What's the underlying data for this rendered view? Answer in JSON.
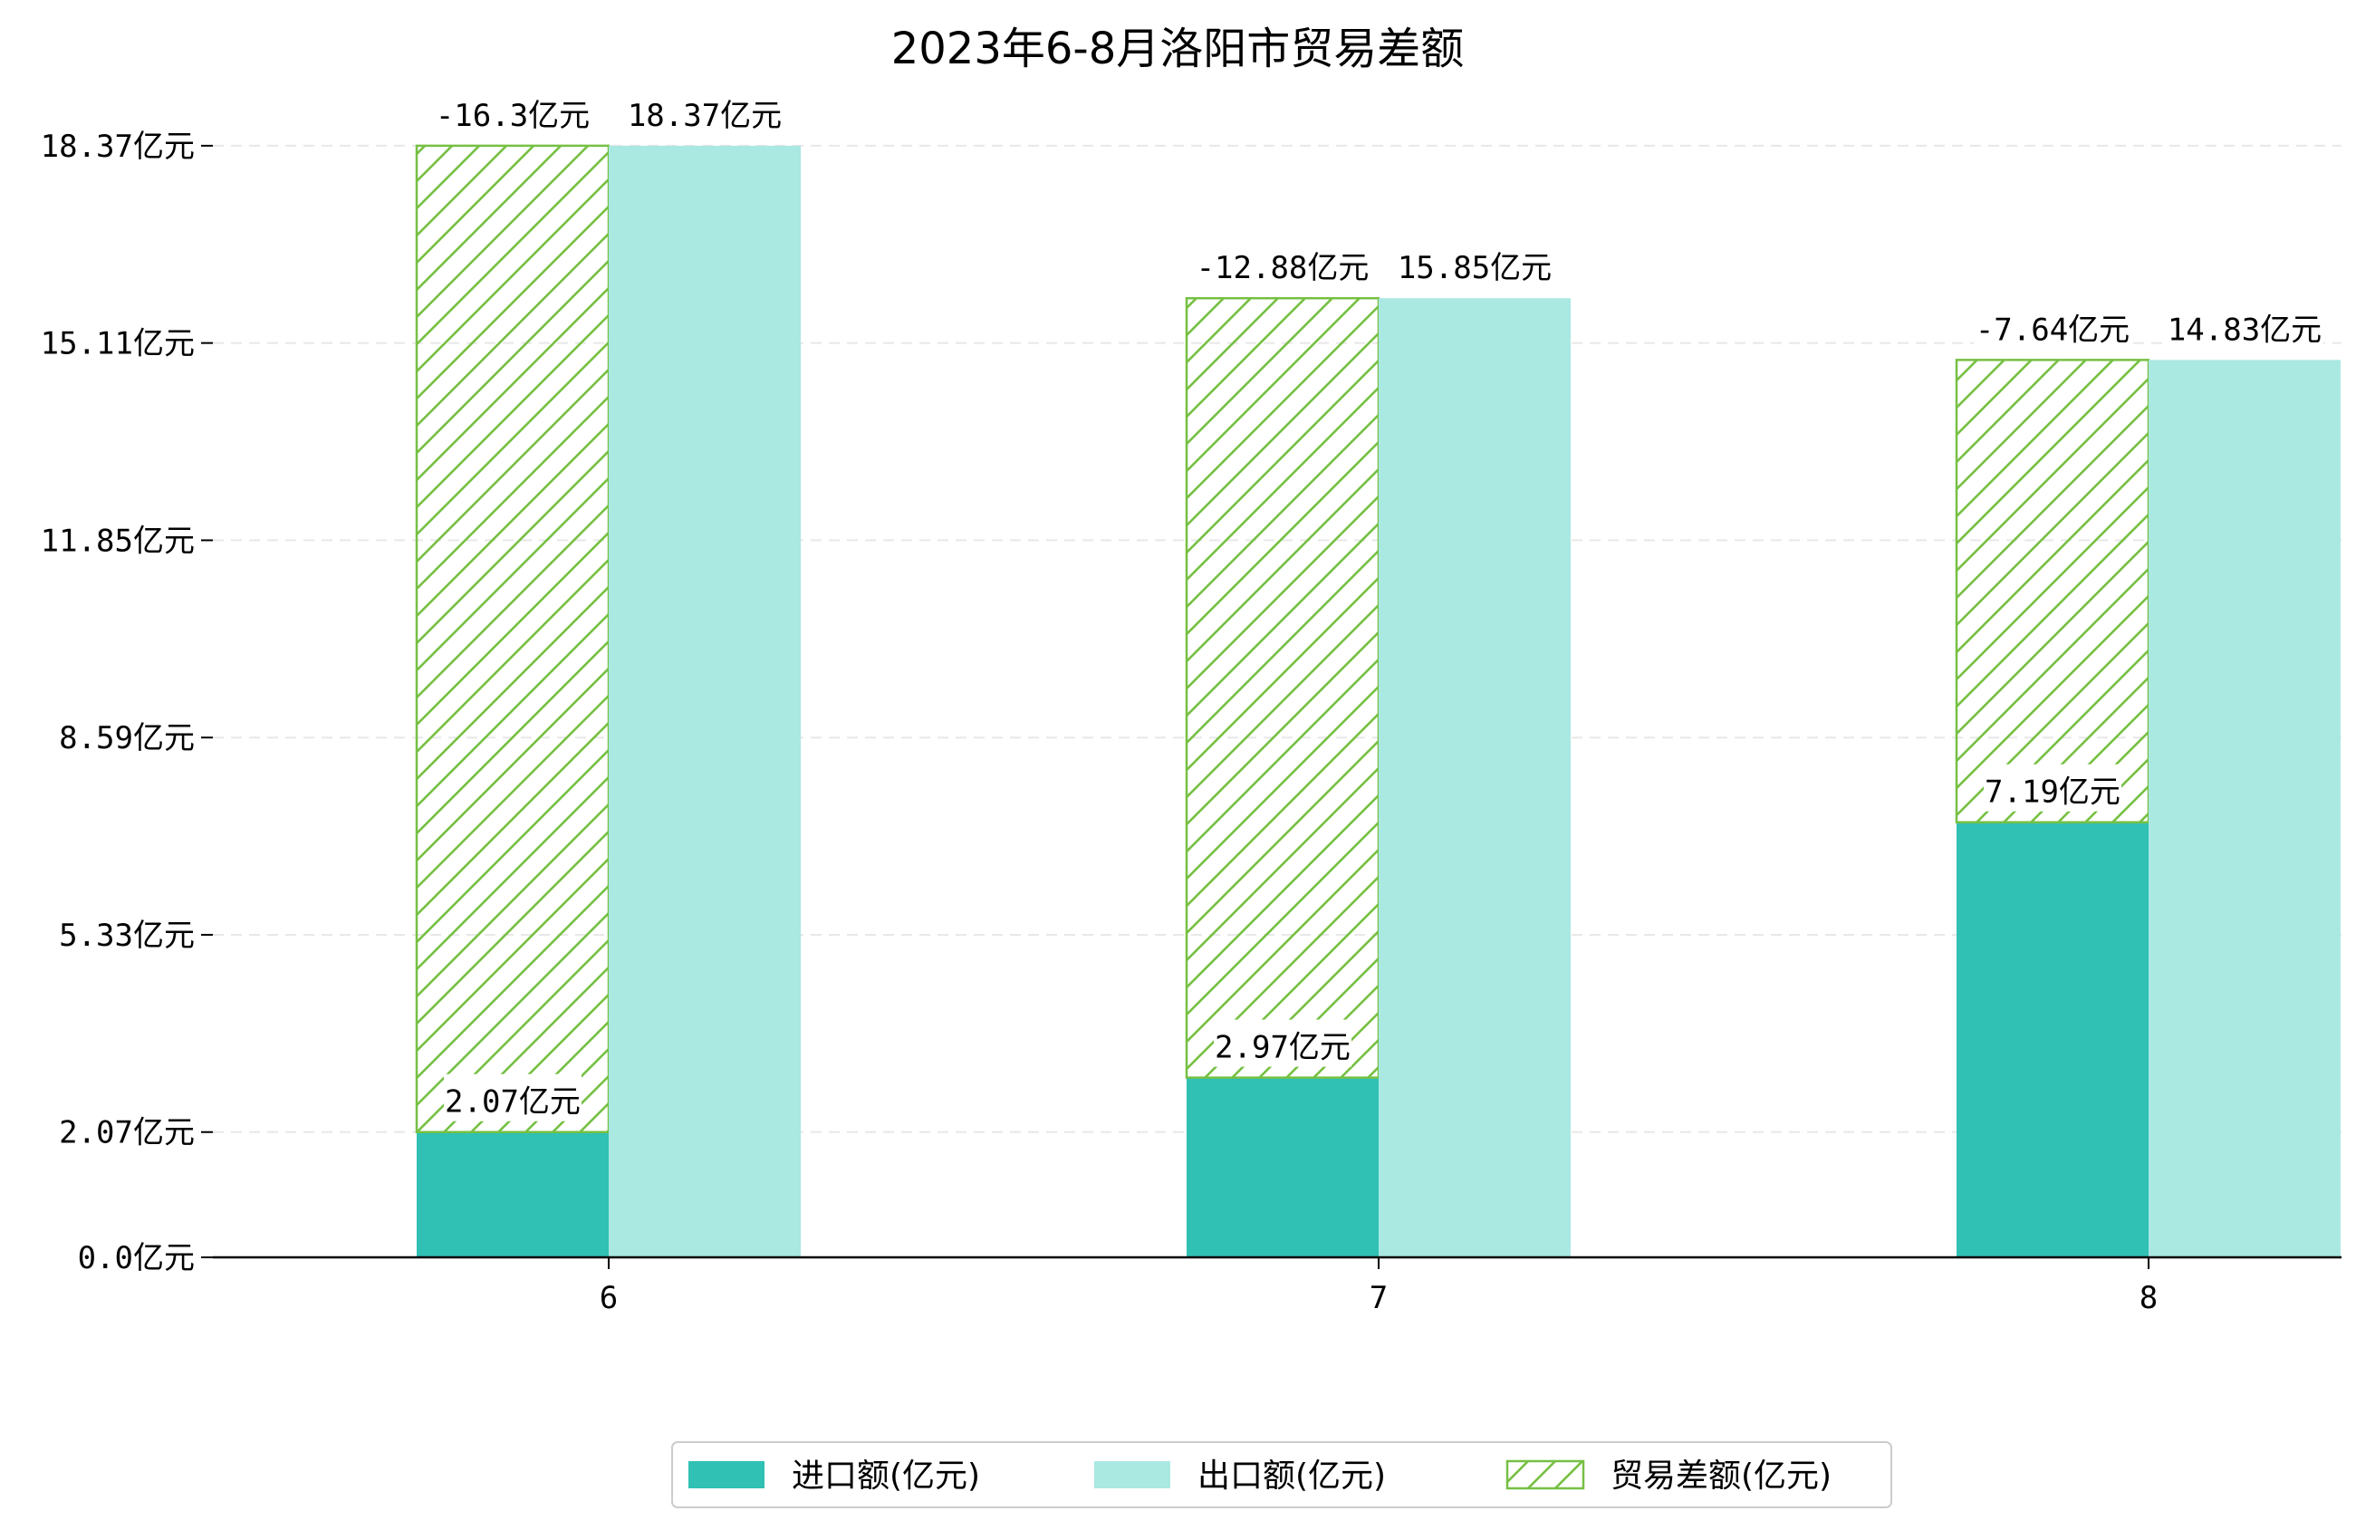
{
  "colors": {
    "import": "#30c0b4",
    "export": "#aae8e2",
    "balance": "#76c043",
    "grid": "#e8e8e8",
    "axis": "#000000",
    "label_bg": "#ffffff"
  },
  "chart_data": {
    "type": "bar",
    "title": "2023年6-8月洛阳市贸易差额",
    "xlabel": "",
    "ylabel": "",
    "categories": [
      "6",
      "7",
      "8"
    ],
    "ylim": [
      0,
      20.6
    ],
    "yticks": [
      0.0,
      2.07,
      5.33,
      8.59,
      11.85,
      15.11,
      18.37
    ],
    "ytick_labels": [
      "0.0亿元",
      "2.07亿元",
      "5.33亿元",
      "8.59亿元",
      "11.85亿元",
      "15.11亿元",
      "18.37亿元"
    ],
    "grid": "horizontal dashed",
    "legend_position": "bottom-center",
    "series": [
      {
        "name": "进口额(亿元)",
        "values": [
          2.07,
          2.97,
          7.19
        ],
        "labels": [
          "2.07亿元",
          "2.97亿元",
          "7.19亿元"
        ]
      },
      {
        "name": "出口额(亿元)",
        "values": [
          18.37,
          15.85,
          14.83
        ],
        "labels": [
          "18.37亿元",
          "15.85亿元",
          "14.83亿元"
        ]
      },
      {
        "name": "贸易差额(亿元)",
        "values": [
          -16.3,
          -12.88,
          -7.64
        ],
        "labels": [
          "-16.3亿元",
          "-12.88亿元",
          "-7.64亿元"
        ]
      }
    ]
  }
}
